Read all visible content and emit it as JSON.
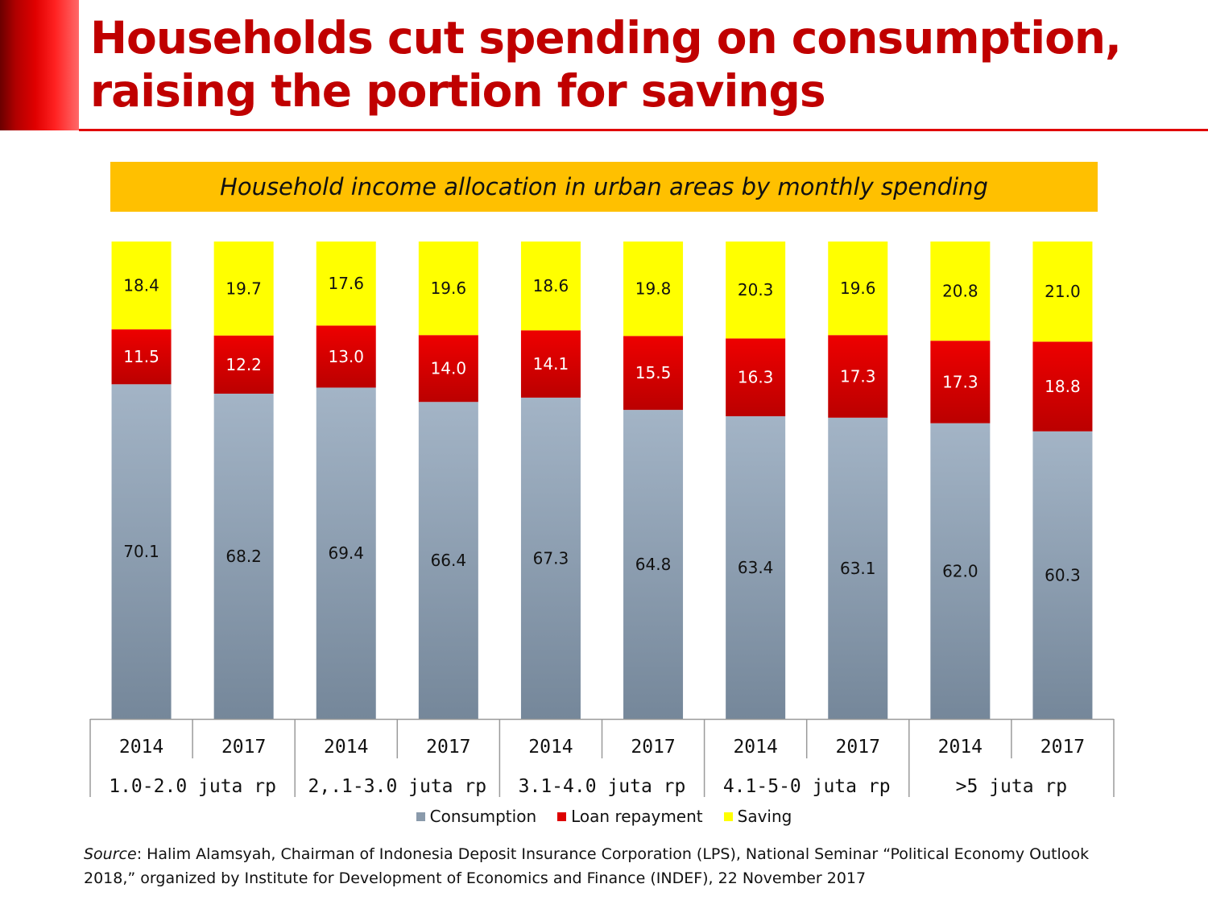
{
  "header": {
    "title_line1": "Households cut spending on consumption,",
    "title_line2": "raising the portion for savings",
    "subtitle": "Household income allocation in urban areas by monthly spending"
  },
  "colors": {
    "title": "#c00000",
    "band": "#ffc000",
    "consumption": "#8a9aab",
    "loan_repayment": "#dd0000",
    "saving": "#ffff00"
  },
  "chart_data": {
    "type": "bar",
    "stacked": true,
    "categories": [
      "2014",
      "2017",
      "2014",
      "2017",
      "2014",
      "2017",
      "2014",
      "2017",
      "2014",
      "2017"
    ],
    "groups": [
      {
        "label": "1.0-2.0 juta rp",
        "categories": [
          "2014",
          "2017"
        ]
      },
      {
        "label": "2,.1-3.0 juta rp",
        "categories": [
          "2014",
          "2017"
        ]
      },
      {
        "label": "3.1-4.0 juta rp",
        "categories": [
          "2014",
          "2017"
        ]
      },
      {
        "label": "4.1-5-0 juta rp",
        "categories": [
          "2014",
          "2017"
        ]
      },
      {
        "label": ">5 juta rp",
        "categories": [
          "2014",
          "2017"
        ]
      }
    ],
    "series": [
      {
        "name": "Consumption",
        "color": "#8a9aab",
        "values": [
          70.1,
          68.2,
          69.4,
          66.4,
          67.3,
          64.8,
          63.4,
          63.1,
          62.0,
          60.3
        ]
      },
      {
        "name": "Loan repayment",
        "color": "#dd0000",
        "values": [
          11.5,
          12.2,
          13.0,
          14.0,
          14.1,
          15.5,
          16.3,
          17.3,
          17.3,
          18.8
        ]
      },
      {
        "name": "Saving",
        "color": "#ffff00",
        "values": [
          18.4,
          19.7,
          17.6,
          19.6,
          18.6,
          19.8,
          20.3,
          19.6,
          20.8,
          21.0
        ]
      }
    ],
    "ylim": [
      0,
      100
    ],
    "legend": "bottom",
    "grid": false
  },
  "legend": {
    "consumption": "Consumption",
    "loan_repayment": "Loan repayment",
    "saving": "Saving"
  },
  "source": {
    "label": "Source",
    "text": ": Halim Alamsyah, Chairman of Indonesia Deposit Insurance Corporation (LPS), National Seminar “Political Economy Outlook 2018,” organized by Institute for Development of Economics and Finance (INDEF), 22 November 2017"
  }
}
